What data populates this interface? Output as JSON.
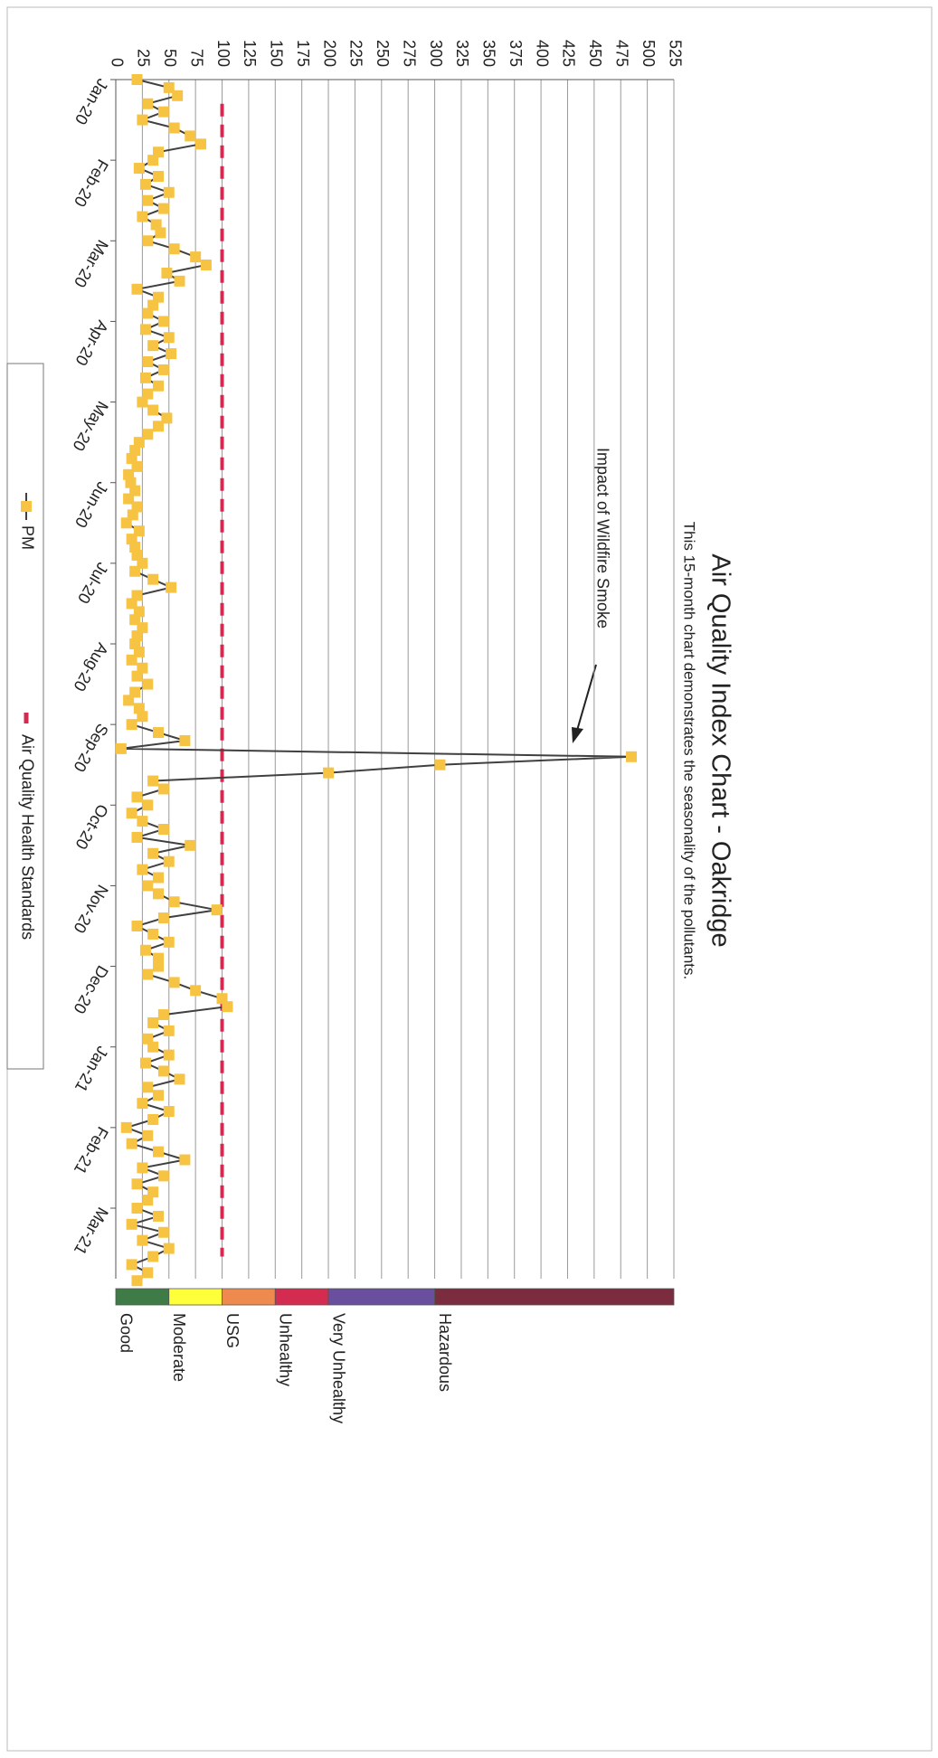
{
  "chart_data": {
    "type": "line",
    "title": "Air Quality Index Chart - Oakridge",
    "subtitle": "This 15-month chart demonstrates the seasonality of the pollutants.",
    "annotation": "Impact of Wildfire Smoke",
    "categories": [
      "Jan-20",
      null,
      null,
      null,
      null,
      null,
      null,
      null,
      null,
      null,
      "Feb-20",
      null,
      null,
      null,
      null,
      null,
      null,
      null,
      null,
      null,
      "Mar-20",
      null,
      null,
      null,
      null,
      null,
      null,
      null,
      null,
      null,
      "Apr-20",
      null,
      null,
      null,
      null,
      null,
      null,
      null,
      null,
      null,
      "May-20",
      null,
      null,
      null,
      null,
      null,
      null,
      null,
      null,
      null,
      "Jun-20",
      null,
      null,
      null,
      null,
      null,
      null,
      null,
      null,
      null,
      "Jul-20",
      null,
      null,
      null,
      null,
      null,
      null,
      null,
      null,
      null,
      "Aug-20",
      null,
      null,
      null,
      null,
      null,
      null,
      null,
      null,
      null,
      "Sep-20",
      null,
      null,
      null,
      null,
      null,
      null,
      null,
      null,
      null,
      "Oct-20",
      null,
      null,
      null,
      null,
      null,
      null,
      null,
      null,
      null,
      "Nov-20",
      null,
      null,
      null,
      null,
      null,
      null,
      null,
      null,
      null,
      "Dec-20",
      null,
      null,
      null,
      null,
      null,
      null,
      null,
      null,
      null,
      "Jan-21",
      null,
      null,
      null,
      null,
      null,
      null,
      null,
      null,
      null,
      "Feb-21",
      null,
      null,
      null,
      null,
      null,
      null,
      null,
      null,
      null,
      "Mar-21",
      null,
      null,
      null,
      null,
      null,
      null,
      null,
      null,
      null
    ],
    "series": [
      {
        "name": "PM",
        "color": "#404040",
        "marker_color": "#f7c343",
        "values": [
          20,
          50,
          58,
          30,
          45,
          25,
          55,
          70,
          80,
          40,
          35,
          22,
          40,
          28,
          50,
          30,
          45,
          25,
          38,
          42,
          30,
          55,
          75,
          85,
          48,
          60,
          20,
          40,
          35,
          30,
          45,
          28,
          50,
          35,
          52,
          30,
          45,
          28,
          40,
          30,
          25,
          35,
          48,
          40,
          30,
          22,
          18,
          15,
          20,
          12,
          14,
          18,
          12,
          20,
          16,
          10,
          22,
          15,
          18,
          20,
          25,
          18,
          35,
          52,
          20,
          15,
          22,
          18,
          25,
          20,
          18,
          22,
          15,
          25,
          20,
          30,
          18,
          12,
          22,
          25,
          15,
          40,
          65,
          5,
          485,
          305,
          200,
          35,
          45,
          20,
          30,
          15,
          25,
          45,
          20,
          70,
          35,
          50,
          25,
          40,
          30,
          40,
          55,
          95,
          45,
          20,
          35,
          50,
          28,
          40,
          40,
          30,
          55,
          75,
          100,
          105,
          45,
          35,
          50,
          30,
          35,
          50,
          28,
          45,
          60,
          30,
          40,
          25,
          50,
          35,
          10,
          30,
          15,
          40,
          65,
          25,
          45,
          20,
          35,
          30,
          20,
          40,
          15,
          45,
          25,
          50,
          35,
          15,
          30,
          20
        ]
      }
    ],
    "reference_line": {
      "name": "Air Quality Health Standards",
      "value": 100,
      "color": "#d42a52"
    },
    "ylim": [
      0,
      525
    ],
    "yticks": [
      0,
      25,
      50,
      75,
      100,
      125,
      150,
      175,
      200,
      225,
      250,
      275,
      300,
      325,
      350,
      375,
      400,
      425,
      450,
      475,
      500,
      525
    ],
    "grid": true,
    "legend": "bottom",
    "aqi_bands": [
      {
        "label": "Good",
        "from": 0,
        "to": 50,
        "color": "#3e7b46"
      },
      {
        "label": "Moderate",
        "from": 50,
        "to": 100,
        "color": "#ffff3a"
      },
      {
        "label": "USG",
        "from": 100,
        "to": 150,
        "color": "#ee8a4e"
      },
      {
        "label": "Unhealthy",
        "from": 150,
        "to": 200,
        "color": "#d42b50"
      },
      {
        "label": "Very Unhealthy",
        "from": 200,
        "to": 300,
        "color": "#6a4f9e"
      },
      {
        "label": "Hazardous",
        "from": 300,
        "to": 525,
        "color": "#7b2d3f"
      }
    ]
  }
}
